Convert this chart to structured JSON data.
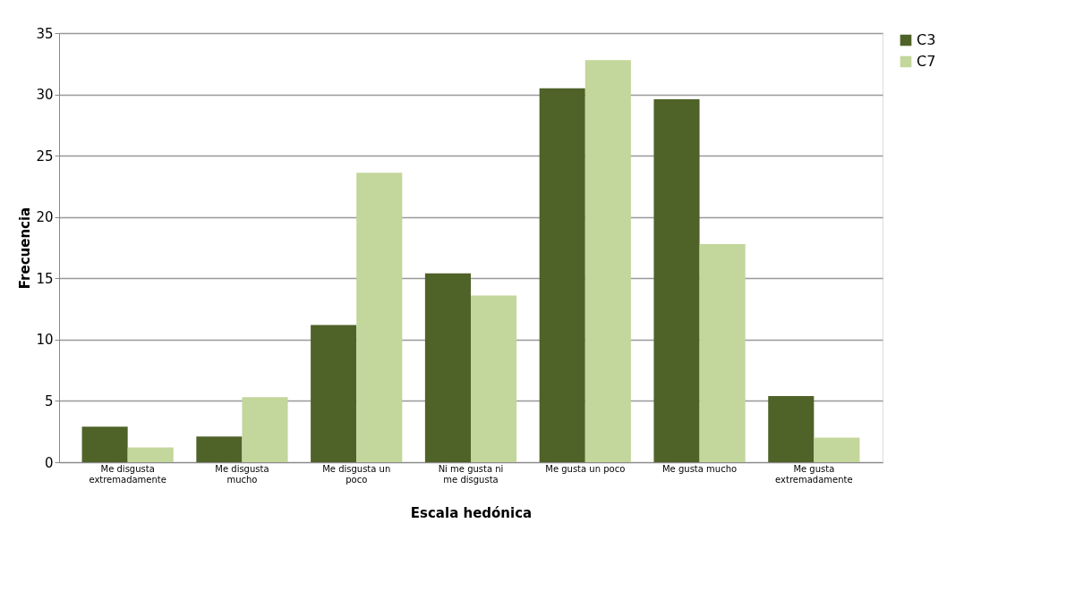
{
  "chart_data": {
    "type": "bar",
    "xlabel": "Escala hedónica",
    "ylabel": "Frecuencia",
    "categories": [
      "Me disgusta extremadamente",
      "Me disgusta mucho",
      "Me disgusta un poco",
      "Ni me gusta ni me disgusta",
      "Me gusta un poco",
      "Me gusta mucho",
      "Me gusta extremadamente"
    ],
    "series": [
      {
        "name": "C3",
        "color": "#4f6228",
        "values": [
          2.9,
          2.1,
          11.2,
          15.4,
          30.5,
          29.6,
          5.4
        ]
      },
      {
        "name": "C7",
        "color": "#c3d69b",
        "values": [
          1.2,
          5.3,
          23.6,
          13.6,
          32.8,
          17.8,
          2.0
        ]
      }
    ],
    "ylim": [
      0,
      35
    ],
    "yticks": [
      0,
      5,
      10,
      15,
      20,
      25,
      30,
      35
    ],
    "grid": "y",
    "legend": "right"
  }
}
